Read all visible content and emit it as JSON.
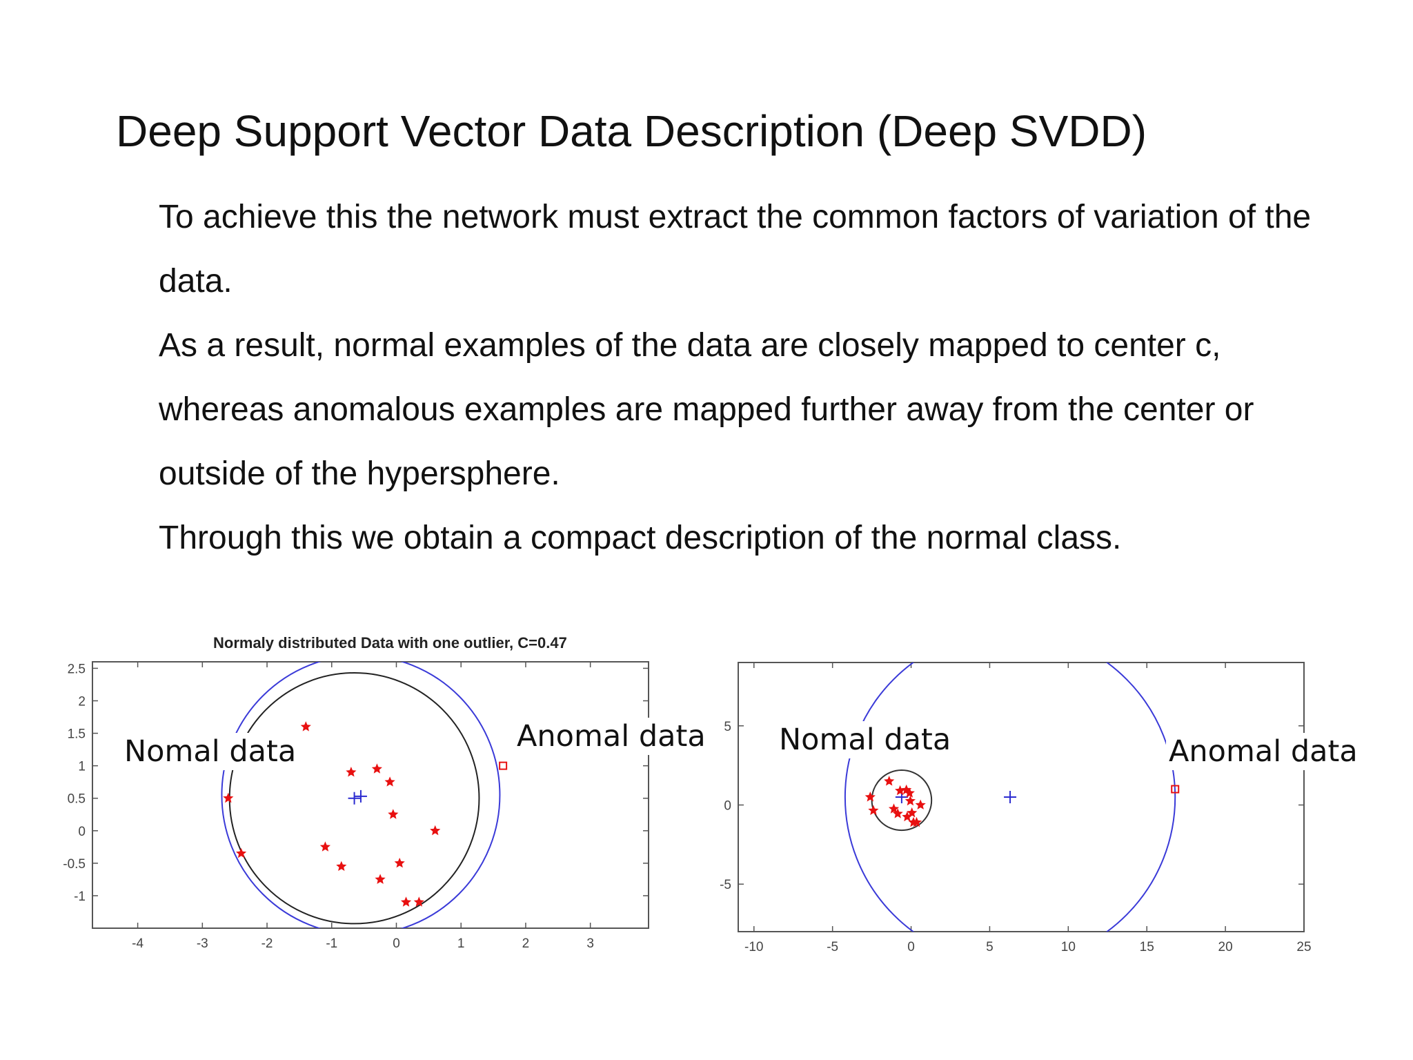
{
  "slide": {
    "title": "Deep Support Vector Data Description (Deep SVDD)",
    "paragraphs": [
      "To achieve this the network must extract the common factors of variation of the data.",
      "As a result, normal examples of the data are closely mapped to center c, whereas anomalous examples are mapped further away from the center or outside of the hypersphere.",
      "Through this we obtain a compact description of the normal class."
    ]
  },
  "chart_data": [
    {
      "type": "scatter",
      "title": "Normaly distributed Data with one outlier, C=0.47",
      "xlim": [
        -4.7,
        3.9
      ],
      "ylim": [
        -1.5,
        2.6
      ],
      "xticks": [
        -4,
        -3,
        -2,
        -1,
        0,
        1,
        2,
        3
      ],
      "yticks": [
        -1,
        -0.5,
        0,
        0.5,
        1,
        1.5,
        2,
        2.5
      ],
      "xtick_labels": [
        "-4",
        "-3",
        "-2",
        "-1",
        "0",
        "1",
        "2",
        "3"
      ],
      "ytick_labels": [
        "-1",
        "-0.5",
        "0",
        "0.5",
        "1",
        "1.5",
        "2",
        "2.5"
      ],
      "series": [
        {
          "role": "normal",
          "color": "#e81010",
          "marker": "star",
          "points": [
            [
              -1.4,
              1.6
            ],
            [
              -2.6,
              0.5
            ],
            [
              -2.4,
              -0.35
            ],
            [
              -0.7,
              0.9
            ],
            [
              -0.3,
              0.95
            ],
            [
              -0.1,
              0.75
            ],
            [
              -0.05,
              0.25
            ],
            [
              0.6,
              0
            ],
            [
              -1.1,
              -0.25
            ],
            [
              -0.85,
              -0.55
            ],
            [
              -0.25,
              -0.75
            ],
            [
              0.05,
              -0.5
            ],
            [
              0.15,
              -1.1
            ],
            [
              0.35,
              -1.1
            ]
          ]
        },
        {
          "role": "outlier",
          "color": "#e81010",
          "marker": "square",
          "points": [
            [
              1.65,
              1.0
            ]
          ]
        }
      ],
      "centers": [
        [
          -0.65,
          0.5
        ],
        [
          -0.55,
          0.53
        ]
      ],
      "circles": [
        {
          "center": [
            -0.65,
            0.5
          ],
          "radius": 1.93,
          "color": "#222222"
        },
        {
          "center": [
            -0.55,
            0.55
          ],
          "radius": 2.15,
          "color": "#3a3ad8"
        }
      ],
      "annotations": [
        "Nomal data",
        "Anomal data"
      ],
      "grid": false
    },
    {
      "type": "scatter",
      "title": "",
      "xlim": [
        -11,
        25
      ],
      "ylim": [
        -8,
        9
      ],
      "xticks": [
        -10,
        -5,
        0,
        5,
        10,
        15,
        20,
        25
      ],
      "yticks": [
        -5,
        0,
        5
      ],
      "xtick_labels": [
        "-10",
        "-5",
        "0",
        "5",
        "10",
        "15",
        "20",
        "25"
      ],
      "ytick_labels": [
        "-5",
        "0",
        "5"
      ],
      "series": [
        {
          "role": "normal",
          "color": "#e81010",
          "marker": "star",
          "points": [
            [
              -1.4,
              1.5
            ],
            [
              -2.6,
              0.5
            ],
            [
              -2.4,
              -0.35
            ],
            [
              -0.7,
              0.9
            ],
            [
              -0.3,
              0.95
            ],
            [
              -0.1,
              0.75
            ],
            [
              -0.05,
              0.25
            ],
            [
              0.6,
              0
            ],
            [
              -1.1,
              -0.25
            ],
            [
              -0.85,
              -0.55
            ],
            [
              -0.25,
              -0.75
            ],
            [
              0.05,
              -0.5
            ],
            [
              0.15,
              -1.1
            ],
            [
              0.35,
              -1.1
            ]
          ]
        },
        {
          "role": "outlier",
          "color": "#e81010",
          "marker": "square",
          "points": [
            [
              16.8,
              1.0
            ]
          ]
        }
      ],
      "centers": [
        [
          6.3,
          0.5
        ],
        [
          -0.6,
          0.5
        ]
      ],
      "circles": [
        {
          "center": [
            6.3,
            0.5
          ],
          "radius": 10.5,
          "color": "#3a3ad8"
        },
        {
          "center": [
            -0.6,
            0.3
          ],
          "radius": 1.9,
          "color": "#333333"
        }
      ],
      "annotations": [
        "Nomal data",
        "Anomal data"
      ],
      "grid": false
    }
  ]
}
